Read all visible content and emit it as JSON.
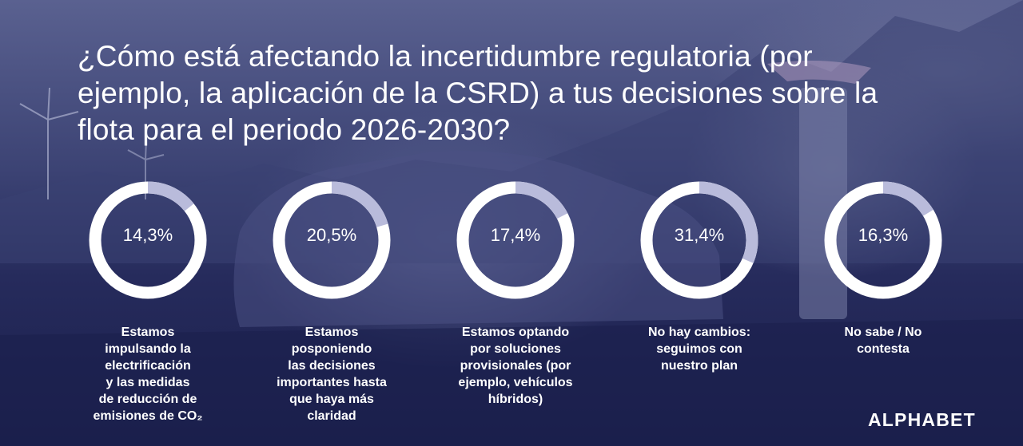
{
  "title": "¿Cómo está afectando la incertidumbre regulatoria (por ejemplo, la aplicación de la CSRD) a tus decisiones sobre la flota para el periodo 2026-2030?",
  "brand": "ALPHABET",
  "colors": {
    "ring_base": "#ffffff",
    "ring_highlight": "#b9bbdb",
    "background": "#262b5c"
  },
  "chart_data": {
    "type": "pie",
    "title": "¿Cómo está afectando la incertidumbre regulatoria (por ejemplo, la aplicación de la CSRD) a tus decisiones sobre la flota para el periodo 2026-2030?",
    "unit": "%",
    "items": [
      {
        "value": 14.3,
        "value_label": "14,3%",
        "label": "Estamos\nimpulsando la\nelectrificación\ny las medidas\nde reducción de\nemisiones de CO₂"
      },
      {
        "value": 20.5,
        "value_label": "20,5%",
        "label": "Estamos\nposponiendo\nlas decisiones\nimportantes hasta\nque haya más\nclaridad"
      },
      {
        "value": 17.4,
        "value_label": "17,4%",
        "label": "Estamos optando\npor soluciones\nprovisionales (por\nejemplo, vehículos\nhíbridos)"
      },
      {
        "value": 31.4,
        "value_label": "31,4%",
        "label": "No hay cambios:\nseguimos con\nnuestro plan"
      },
      {
        "value": 16.3,
        "value_label": "16,3%",
        "label": "No sabe / No\ncontesta"
      }
    ]
  }
}
